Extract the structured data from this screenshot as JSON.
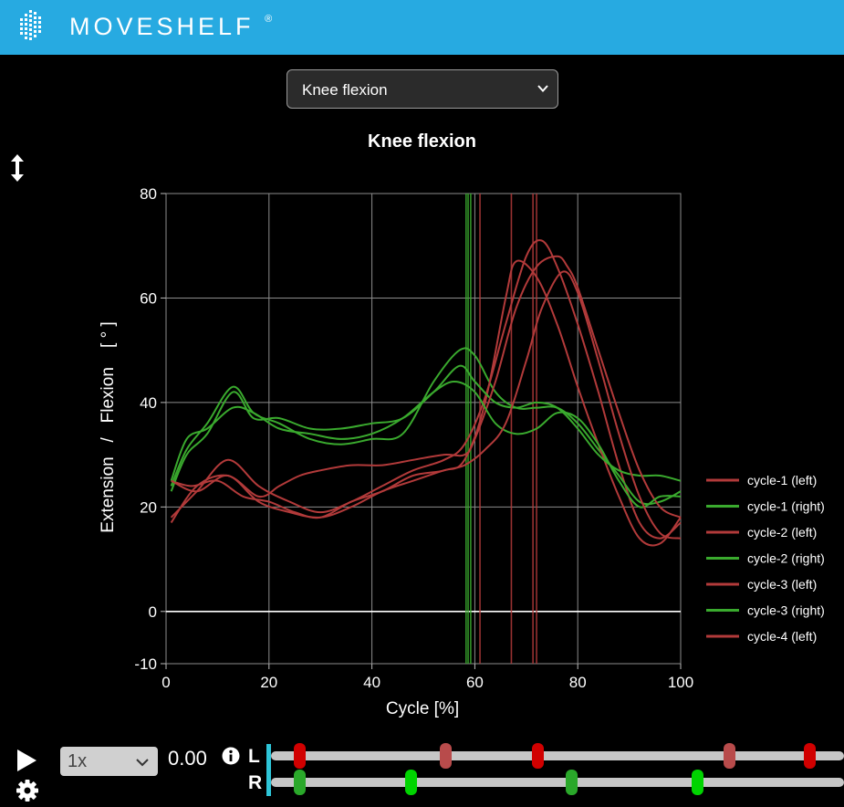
{
  "header": {
    "brand": "MOVESHELF",
    "registered": "®"
  },
  "selector": {
    "value": "Knee flexion"
  },
  "chart_data": {
    "type": "line",
    "title": "Knee flexion",
    "xlabel": "Cycle [%]",
    "ylabel": "Extension   /   Flexion    [ ° ]",
    "xlim": [
      0,
      100
    ],
    "ylim": [
      -10,
      80
    ],
    "x_ticks": [
      0,
      20,
      40,
      60,
      80,
      100
    ],
    "y_ticks": [
      -10,
      0,
      20,
      40,
      60,
      80
    ],
    "grid": true,
    "legend_position": "right",
    "series": [
      {
        "name": "cycle-1 (left)",
        "color": "#b23a3a",
        "x": [
          1,
          6,
          12,
          18,
          24,
          30,
          36,
          42,
          48,
          54,
          58,
          62,
          66,
          70,
          73,
          76,
          80,
          84,
          88,
          92,
          96,
          100
        ],
        "y": [
          18,
          23,
          29,
          24,
          21,
          19,
          21,
          24,
          27,
          29,
          32,
          41,
          55,
          68,
          71,
          66,
          55,
          42,
          28,
          17,
          14,
          17
        ],
        "event": 71.3
      },
      {
        "name": "cycle-1 (right)",
        "color": "#3aaa2e",
        "x": [
          1,
          4,
          8,
          13,
          17,
          22,
          28,
          34,
          40,
          46,
          52,
          57,
          60,
          64,
          68,
          72,
          76,
          80,
          84,
          88,
          92,
          96,
          100
        ],
        "y": [
          24,
          31,
          36,
          43,
          38,
          36,
          33,
          32,
          33,
          34,
          44,
          50,
          49,
          42,
          39,
          39,
          39,
          36,
          31,
          26,
          21,
          21,
          23
        ],
        "event": 58.7
      },
      {
        "name": "cycle-2 (left)",
        "color": "#b23a3a",
        "x": [
          1,
          5,
          10,
          15,
          20,
          25,
          30,
          36,
          42,
          48,
          54,
          58,
          62,
          66,
          68,
          72,
          76,
          80,
          84,
          88,
          92,
          96,
          100
        ],
        "y": [
          25,
          24,
          25,
          22,
          21,
          19,
          18,
          21,
          23,
          26,
          27,
          29,
          40,
          60,
          67,
          64,
          55,
          43,
          32,
          22,
          14,
          13,
          18
        ],
        "event": 67.1
      },
      {
        "name": "cycle-2 (right)",
        "color": "#3aaa2e",
        "x": [
          1,
          4,
          8,
          13,
          17,
          22,
          28,
          34,
          40,
          46,
          52,
          57,
          60,
          64,
          68,
          72,
          76,
          80,
          84,
          88,
          92,
          96,
          100
        ],
        "y": [
          23,
          30,
          34,
          42,
          37,
          37,
          35,
          35,
          36,
          37,
          42,
          47,
          44,
          40,
          39,
          40,
          39,
          35,
          30,
          27,
          26,
          26,
          25
        ],
        "event": 59.2
      },
      {
        "name": "cycle-3 (left)",
        "color": "#b23a3a",
        "x": [
          1,
          6,
          12,
          18,
          22,
          26,
          30,
          36,
          42,
          48,
          54,
          58,
          60,
          64,
          68,
          72,
          76,
          78,
          80,
          84,
          88,
          92,
          96,
          100
        ],
        "y": [
          17,
          24,
          26,
          22,
          24,
          26,
          27,
          28,
          28,
          29,
          30,
          30,
          33,
          44,
          58,
          66,
          68,
          66,
          62,
          50,
          38,
          27,
          20,
          18
        ],
        "event": 61.0
      },
      {
        "name": "cycle-3 (right)",
        "color": "#3aaa2e",
        "x": [
          1,
          4,
          8,
          13,
          17,
          22,
          28,
          34,
          40,
          46,
          52,
          56,
          60,
          64,
          68,
          72,
          76,
          80,
          84,
          88,
          92,
          96,
          100
        ],
        "y": [
          25,
          33,
          35,
          39,
          38,
          35,
          34,
          33,
          34,
          37,
          42,
          44,
          42,
          36,
          34,
          35,
          38,
          37,
          32,
          25,
          20,
          22,
          22
        ],
        "event": 58.3
      },
      {
        "name": "cycle-4 (left)",
        "color": "#b23a3a",
        "x": [
          1,
          6,
          12,
          18,
          24,
          30,
          36,
          42,
          48,
          54,
          58,
          62,
          66,
          70,
          73,
          77,
          80,
          84,
          88,
          92,
          96,
          100
        ],
        "y": [
          25,
          23,
          26,
          21,
          19,
          18,
          20,
          23,
          25,
          27,
          28,
          31,
          36,
          48,
          58,
          65,
          61,
          48,
          34,
          22,
          15,
          14
        ],
        "event": 72.0
      }
    ]
  },
  "playback": {
    "speed": "1x",
    "time": "0.00",
    "tracks": [
      {
        "label": "L",
        "events": [
          {
            "pos": 0.05,
            "color": "#d10000"
          },
          {
            "pos": 0.305,
            "color": "#b84b4b"
          },
          {
            "pos": 0.465,
            "color": "#d10000"
          },
          {
            "pos": 0.8,
            "color": "#b84b4b"
          },
          {
            "pos": 0.94,
            "color": "#d10000"
          }
        ]
      },
      {
        "label": "R",
        "events": [
          {
            "pos": 0.05,
            "color": "#2aa82a"
          },
          {
            "pos": 0.245,
            "color": "#00d400"
          },
          {
            "pos": 0.525,
            "color": "#2aa82a"
          },
          {
            "pos": 0.745,
            "color": "#00d400"
          }
        ]
      }
    ]
  }
}
